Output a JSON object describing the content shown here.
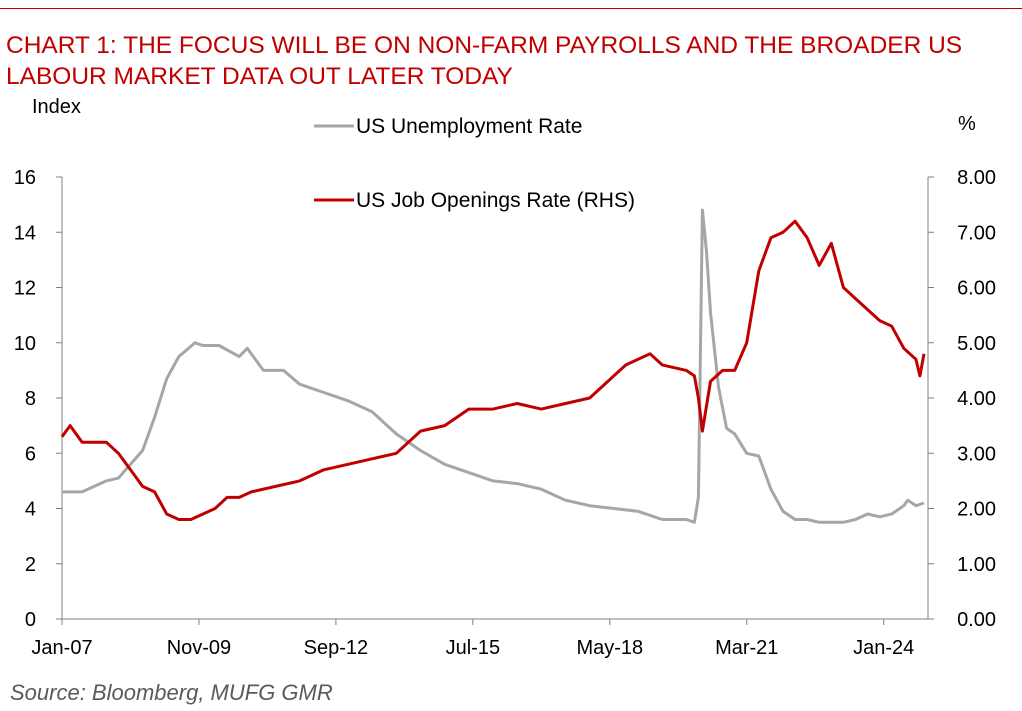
{
  "header": {
    "title": "CHART 1: THE FOCUS WILL BE ON NON-FARM PAYROLLS AND THE BROADER US LABOUR MARKET DATA OUT LATER TODAY"
  },
  "footer": {
    "source": "Source: Bloomberg, MUFG GMR"
  },
  "chart_data": {
    "type": "line",
    "left_axis_label": "Index",
    "right_axis_label": "%",
    "left_ylim": [
      0,
      16
    ],
    "left_ticks": [
      "0",
      "2",
      "4",
      "6",
      "8",
      "10",
      "12",
      "14",
      "16"
    ],
    "right_ylim": [
      0,
      8
    ],
    "right_ticks": [
      "0.00",
      "1.00",
      "2.00",
      "3.00",
      "4.00",
      "5.00",
      "6.00",
      "7.00",
      "8.00"
    ],
    "x_ticks": [
      {
        "label": "Jan-07",
        "date": "2007-01"
      },
      {
        "label": "Nov-09",
        "date": "2009-11"
      },
      {
        "label": "Sep-12",
        "date": "2012-09"
      },
      {
        "label": "Jul-15",
        "date": "2015-07"
      },
      {
        "label": "May-18",
        "date": "2018-05"
      },
      {
        "label": "Mar-21",
        "date": "2021-03"
      },
      {
        "label": "Jan-24",
        "date": "2024-01"
      }
    ],
    "xlim": [
      "2007-01",
      "2024-12"
    ],
    "grid": false,
    "legend_placement": "top-center",
    "colors": {
      "unemployment": "#a6a6a6",
      "job_openings": "#c00000",
      "title": "#c00000"
    },
    "series": [
      {
        "name": "US Unemployment Rate",
        "axis": "left",
        "points": [
          [
            "2007-01",
            4.6
          ],
          [
            "2007-06",
            4.6
          ],
          [
            "2007-12",
            5.0
          ],
          [
            "2008-03",
            5.1
          ],
          [
            "2008-06",
            5.6
          ],
          [
            "2008-09",
            6.1
          ],
          [
            "2008-12",
            7.3
          ],
          [
            "2009-03",
            8.7
          ],
          [
            "2009-06",
            9.5
          ],
          [
            "2009-10",
            10.0
          ],
          [
            "2009-12",
            9.9
          ],
          [
            "2010-04",
            9.9
          ],
          [
            "2010-09",
            9.5
          ],
          [
            "2010-11",
            9.8
          ],
          [
            "2011-03",
            9.0
          ],
          [
            "2011-08",
            9.0
          ],
          [
            "2011-12",
            8.5
          ],
          [
            "2012-06",
            8.2
          ],
          [
            "2012-12",
            7.9
          ],
          [
            "2013-06",
            7.5
          ],
          [
            "2013-12",
            6.7
          ],
          [
            "2014-06",
            6.1
          ],
          [
            "2014-12",
            5.6
          ],
          [
            "2015-06",
            5.3
          ],
          [
            "2015-12",
            5.0
          ],
          [
            "2016-06",
            4.9
          ],
          [
            "2016-12",
            4.7
          ],
          [
            "2017-06",
            4.3
          ],
          [
            "2017-12",
            4.1
          ],
          [
            "2018-06",
            4.0
          ],
          [
            "2018-12",
            3.9
          ],
          [
            "2019-06",
            3.6
          ],
          [
            "2019-12",
            3.6
          ],
          [
            "2020-02",
            3.5
          ],
          [
            "2020-03",
            4.4
          ],
          [
            "2020-04",
            14.8
          ],
          [
            "2020-05",
            13.3
          ],
          [
            "2020-06",
            11.1
          ],
          [
            "2020-08",
            8.4
          ],
          [
            "2020-10",
            6.9
          ],
          [
            "2020-12",
            6.7
          ],
          [
            "2021-03",
            6.0
          ],
          [
            "2021-06",
            5.9
          ],
          [
            "2021-09",
            4.7
          ],
          [
            "2021-12",
            3.9
          ],
          [
            "2022-03",
            3.6
          ],
          [
            "2022-06",
            3.6
          ],
          [
            "2022-09",
            3.5
          ],
          [
            "2022-12",
            3.5
          ],
          [
            "2023-03",
            3.5
          ],
          [
            "2023-06",
            3.6
          ],
          [
            "2023-09",
            3.8
          ],
          [
            "2023-12",
            3.7
          ],
          [
            "2024-03",
            3.8
          ],
          [
            "2024-06",
            4.1
          ],
          [
            "2024-07",
            4.3
          ],
          [
            "2024-09",
            4.1
          ],
          [
            "2024-11",
            4.2
          ]
        ]
      },
      {
        "name": "US Job Openings Rate (RHS)",
        "axis": "right",
        "points": [
          [
            "2007-01",
            3.3
          ],
          [
            "2007-03",
            3.5
          ],
          [
            "2007-06",
            3.2
          ],
          [
            "2007-09",
            3.2
          ],
          [
            "2007-12",
            3.2
          ],
          [
            "2008-03",
            3.0
          ],
          [
            "2008-06",
            2.7
          ],
          [
            "2008-09",
            2.4
          ],
          [
            "2008-12",
            2.3
          ],
          [
            "2009-03",
            1.9
          ],
          [
            "2009-06",
            1.8
          ],
          [
            "2009-09",
            1.8
          ],
          [
            "2009-12",
            1.9
          ],
          [
            "2010-03",
            2.0
          ],
          [
            "2010-06",
            2.2
          ],
          [
            "2010-09",
            2.2
          ],
          [
            "2010-12",
            2.3
          ],
          [
            "2011-06",
            2.4
          ],
          [
            "2011-12",
            2.5
          ],
          [
            "2012-06",
            2.7
          ],
          [
            "2012-12",
            2.8
          ],
          [
            "2013-06",
            2.9
          ],
          [
            "2013-12",
            3.0
          ],
          [
            "2014-06",
            3.4
          ],
          [
            "2014-12",
            3.5
          ],
          [
            "2015-06",
            3.8
          ],
          [
            "2015-12",
            3.8
          ],
          [
            "2016-06",
            3.9
          ],
          [
            "2016-12",
            3.8
          ],
          [
            "2017-06",
            3.9
          ],
          [
            "2017-12",
            4.0
          ],
          [
            "2018-06",
            4.4
          ],
          [
            "2018-09",
            4.6
          ],
          [
            "2018-12",
            4.7
          ],
          [
            "2019-03",
            4.8
          ],
          [
            "2019-06",
            4.6
          ],
          [
            "2019-12",
            4.5
          ],
          [
            "2020-02",
            4.4
          ],
          [
            "2020-03",
            4.0
          ],
          [
            "2020-04",
            3.4
          ],
          [
            "2020-06",
            4.3
          ],
          [
            "2020-09",
            4.5
          ],
          [
            "2020-12",
            4.5
          ],
          [
            "2021-03",
            5.0
          ],
          [
            "2021-06",
            6.3
          ],
          [
            "2021-09",
            6.9
          ],
          [
            "2021-12",
            7.0
          ],
          [
            "2022-03",
            7.2
          ],
          [
            "2022-06",
            6.9
          ],
          [
            "2022-09",
            6.4
          ],
          [
            "2022-12",
            6.8
          ],
          [
            "2023-03",
            6.0
          ],
          [
            "2023-06",
            5.8
          ],
          [
            "2023-09",
            5.6
          ],
          [
            "2023-12",
            5.4
          ],
          [
            "2024-03",
            5.3
          ],
          [
            "2024-06",
            4.9
          ],
          [
            "2024-09",
            4.7
          ],
          [
            "2024-10",
            4.4
          ],
          [
            "2024-11",
            4.8
          ]
        ]
      }
    ]
  }
}
